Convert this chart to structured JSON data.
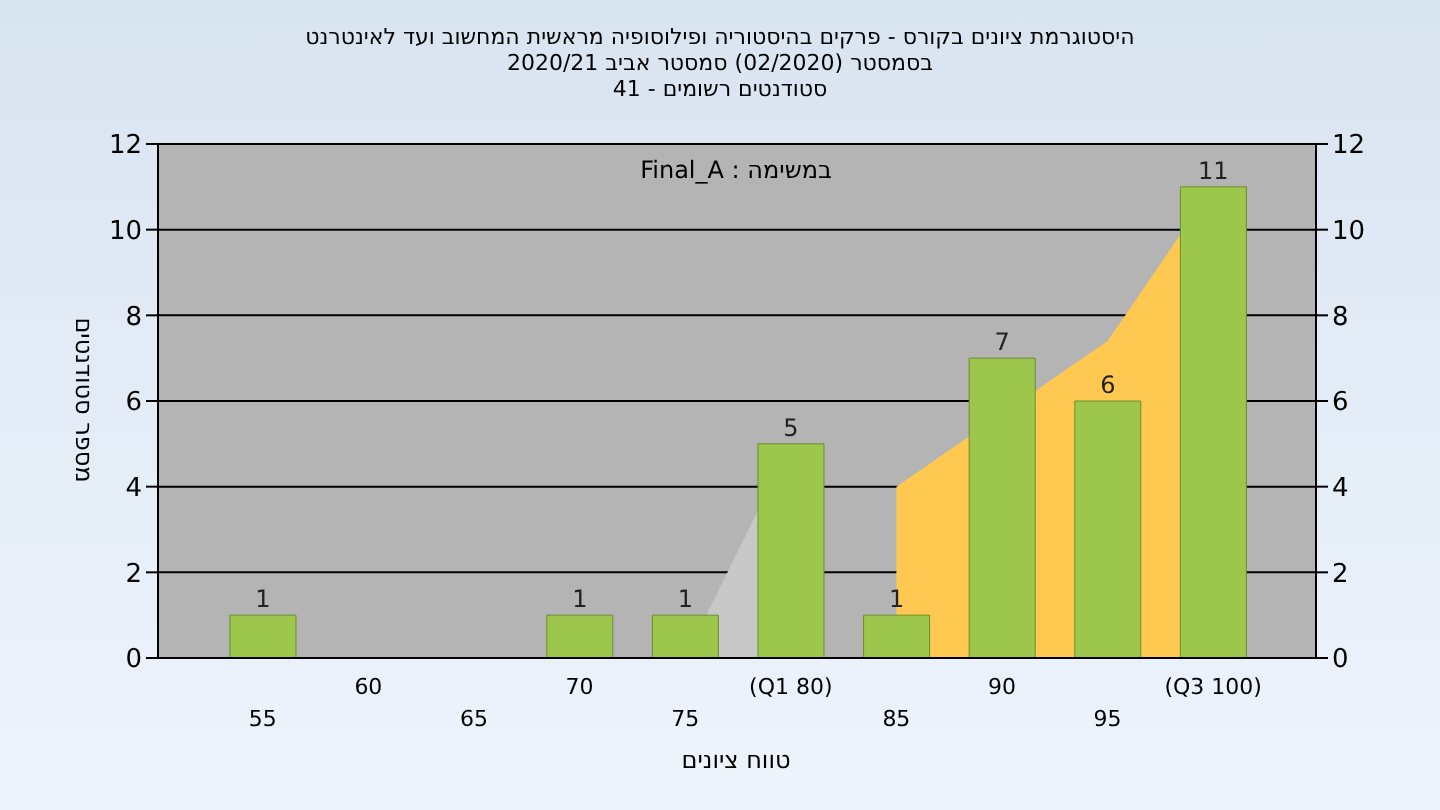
{
  "chart_data": {
    "type": "bar",
    "title": "היסטוגרמת ציונים בקורס - פרקים בהיסטוריה ופילוסופיה מראשית המחשוב ועד לאינטרנט",
    "subtitle": "בסמסטר  (02/2020)  סמסטר אביב 2020/21\nסטודנטים רשומים - 41",
    "xlabel": "טווח ציונים",
    "ylabel": "מספר סטודנטים",
    "annotations": [
      "במשימה : Final_A"
    ],
    "categories": [
      "55",
      "60",
      "65",
      "70",
      "75",
      "(Q1 80)",
      "85",
      "90",
      "95",
      "(Q3 100)"
    ],
    "series": [
      {
        "type": "area",
        "color": "#c8c8c8",
        "values": [
          null,
          null,
          null,
          null,
          0,
          5,
          null,
          null,
          null,
          null
        ]
      },
      {
        "type": "area",
        "color": "#ffc850",
        "values": [
          null,
          null,
          null,
          null,
          null,
          null,
          4,
          null,
          7.4,
          11
        ]
      },
      {
        "color": "#9cc64c",
        "values": [
          1,
          0,
          0,
          1,
          1,
          5,
          1,
          7,
          6,
          11
        ],
        "value_labels": [
          "1",
          null,
          null,
          "1",
          "1",
          "5",
          "1",
          "7",
          "6",
          "11"
        ]
      }
    ],
    "ylim": [
      0,
      12
    ],
    "yticks": [
      0,
      2,
      4,
      6,
      8,
      10,
      12
    ],
    "y2lim": [
      0,
      12
    ],
    "y2ticks": [
      0,
      2,
      4,
      6,
      8,
      10,
      12
    ],
    "grid": "y",
    "legend": false
  }
}
